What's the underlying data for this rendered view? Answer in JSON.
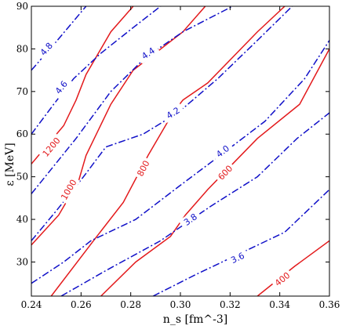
{
  "chart_data": {
    "type": "line",
    "xlabel": "n_s [fm^-3]",
    "ylabel": "ε [MeV]",
    "xlim": [
      0.24,
      0.36
    ],
    "ylim": [
      22,
      90
    ],
    "xticks": [
      "0.24",
      "0.26",
      "0.28",
      "0.30",
      "0.32",
      "0.34",
      "0.36"
    ],
    "xtick_values": [
      0.24,
      0.26,
      0.28,
      0.3,
      0.32,
      0.34,
      0.36
    ],
    "yticks": [
      "30",
      "40",
      "50",
      "60",
      "70",
      "80",
      "90"
    ],
    "ytick_values": [
      30,
      40,
      50,
      60,
      70,
      80,
      90
    ],
    "grid": false,
    "colors": {
      "red_series": "#e31a1c",
      "blue_series": "#1010c8"
    },
    "series": [
      {
        "name": "1200",
        "color": "#e31a1c",
        "style": "solid",
        "points": [
          [
            0.24,
            53
          ],
          [
            0.253,
            62
          ],
          [
            0.258,
            68
          ],
          [
            0.262,
            74
          ],
          [
            0.272,
            84
          ],
          [
            0.281,
            90
          ]
        ],
        "label_at": [
          0.248,
          57
        ]
      },
      {
        "name": "1000",
        "color": "#e31a1c",
        "style": "solid",
        "points": [
          [
            0.24,
            34
          ],
          [
            0.251,
            41
          ],
          [
            0.259,
            49
          ],
          [
            0.262,
            55
          ],
          [
            0.272,
            67
          ],
          [
            0.281,
            75
          ],
          [
            0.301,
            84
          ],
          [
            0.31,
            90
          ]
        ],
        "label_at": [
          0.255,
          47
        ]
      },
      {
        "name": "800",
        "color": "#e31a1c",
        "style": "solid",
        "points": [
          [
            0.248,
            22
          ],
          [
            0.265,
            35
          ],
          [
            0.277,
            44
          ],
          [
            0.287,
            55
          ],
          [
            0.297,
            65
          ],
          [
            0.301,
            68
          ],
          [
            0.311,
            72
          ],
          [
            0.331,
            84
          ],
          [
            0.342,
            90
          ]
        ],
        "label_at": [
          0.285,
          52
        ]
      },
      {
        "name": "600",
        "color": "#e31a1c",
        "style": "solid",
        "points": [
          [
            0.268,
            22
          ],
          [
            0.282,
            30
          ],
          [
            0.296,
            36
          ],
          [
            0.302,
            41
          ],
          [
            0.311,
            47
          ],
          [
            0.321,
            53
          ],
          [
            0.331,
            59
          ],
          [
            0.348,
            67
          ],
          [
            0.36,
            80
          ]
        ],
        "label_at": [
          0.318,
          51
        ]
      },
      {
        "name": "400",
        "color": "#e31a1c",
        "style": "solid",
        "points": [
          [
            0.331,
            22
          ],
          [
            0.346,
            29
          ],
          [
            0.36,
            35
          ]
        ],
        "label_at": [
          0.341,
          26
        ]
      },
      {
        "name": "4.8",
        "color": "#1010c8",
        "style": "dashdot",
        "points": [
          [
            0.24,
            75
          ],
          [
            0.249,
            81
          ],
          [
            0.262,
            90
          ]
        ],
        "label_at": [
          0.246,
          80
        ]
      },
      {
        "name": "4.6",
        "color": "#1010c8",
        "style": "dashdot",
        "points": [
          [
            0.24,
            60
          ],
          [
            0.249,
            67
          ],
          [
            0.257,
            73
          ],
          [
            0.268,
            79
          ],
          [
            0.281,
            85
          ],
          [
            0.292,
            90
          ]
        ],
        "label_at": [
          0.252,
          71
        ]
      },
      {
        "name": "4.4",
        "color": "#1010c8",
        "style": "dashdot",
        "points": [
          [
            0.24,
            46
          ],
          [
            0.258,
            59
          ],
          [
            0.272,
            70
          ],
          [
            0.286,
            78
          ],
          [
            0.301,
            84
          ],
          [
            0.321,
            90
          ]
        ],
        "label_at": [
          0.287,
          79
        ]
      },
      {
        "name": "4.2",
        "color": "#1010c8",
        "style": "dashdot",
        "points": [
          [
            0.24,
            35
          ],
          [
            0.25,
            42
          ],
          [
            0.261,
            50
          ],
          [
            0.27,
            57
          ],
          [
            0.285,
            60
          ],
          [
            0.299,
            65
          ],
          [
            0.315,
            73
          ],
          [
            0.331,
            82
          ],
          [
            0.345,
            90
          ]
        ],
        "label_at": [
          0.297,
          65
        ]
      },
      {
        "name": "4.0",
        "color": "#1010c8",
        "style": "dashdot",
        "points": [
          [
            0.24,
            25
          ],
          [
            0.253,
            30
          ],
          [
            0.264,
            35
          ],
          [
            0.282,
            40
          ],
          [
            0.3,
            48
          ],
          [
            0.316,
            55
          ],
          [
            0.334,
            63
          ],
          [
            0.35,
            73
          ],
          [
            0.36,
            82
          ]
        ],
        "label_at": [
          0.317,
          56
        ]
      },
      {
        "name": "3.8",
        "color": "#1010c8",
        "style": "dashdot",
        "points": [
          [
            0.252,
            22
          ],
          [
            0.27,
            28
          ],
          [
            0.292,
            35
          ],
          [
            0.312,
            43
          ],
          [
            0.331,
            50
          ],
          [
            0.347,
            59
          ],
          [
            0.36,
            65
          ]
        ],
        "label_at": [
          0.304,
          40
        ]
      },
      {
        "name": "3.6",
        "color": "#1010c8",
        "style": "dashdot",
        "points": [
          [
            0.289,
            22
          ],
          [
            0.306,
            27
          ],
          [
            0.324,
            32
          ],
          [
            0.342,
            37
          ],
          [
            0.36,
            47
          ]
        ],
        "label_at": [
          0.323,
          31
        ]
      }
    ]
  }
}
